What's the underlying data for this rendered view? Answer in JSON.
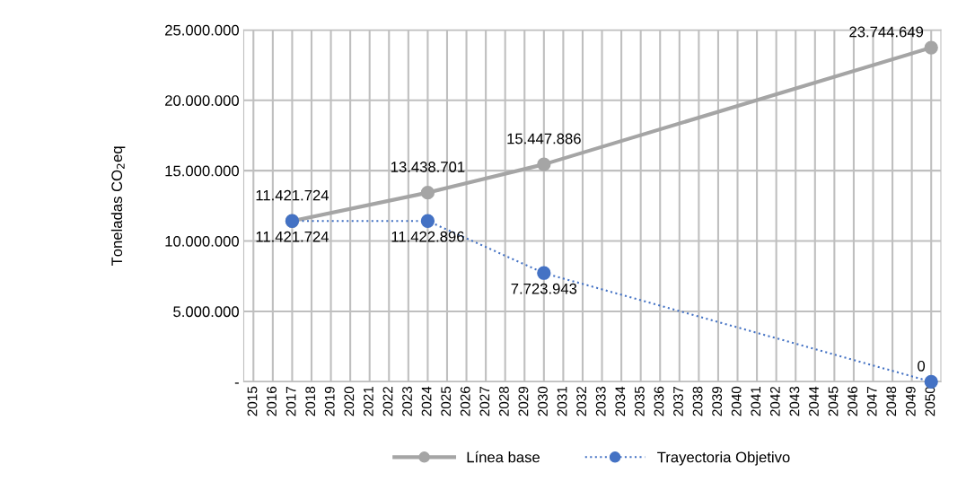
{
  "chart_data": {
    "type": "line",
    "ylabel": "Toneladas CO$_{2}$eq",
    "categories": [
      "2015",
      "2016",
      "2017",
      "2018",
      "2019",
      "2020",
      "2021",
      "2022",
      "2023",
      "2024",
      "2025",
      "2026",
      "2027",
      "2028",
      "2029",
      "2030",
      "2031",
      "2032",
      "2033",
      "2034",
      "2035",
      "2036",
      "2037",
      "2038",
      "2039",
      "2040",
      "2041",
      "2042",
      "2043",
      "2044",
      "2045",
      "2046",
      "2047",
      "2048",
      "2049",
      "2050"
    ],
    "series": [
      {
        "name": "Línea base",
        "color": "#a5a5a5",
        "line_style": "solid",
        "values": [
          null,
          null,
          11421724,
          null,
          null,
          null,
          null,
          null,
          null,
          13438701,
          null,
          null,
          null,
          null,
          null,
          15447886,
          null,
          null,
          null,
          null,
          null,
          null,
          null,
          null,
          null,
          null,
          null,
          null,
          null,
          null,
          null,
          null,
          null,
          null,
          null,
          23744649
        ],
        "value_labels": [
          null,
          null,
          "11.421.724",
          null,
          null,
          null,
          null,
          null,
          null,
          "13.438.701",
          null,
          null,
          null,
          null,
          null,
          "15.447.886",
          null,
          null,
          null,
          null,
          null,
          null,
          null,
          null,
          null,
          null,
          null,
          null,
          null,
          null,
          null,
          null,
          null,
          null,
          null,
          "23.744.649"
        ]
      },
      {
        "name": "Trayectoria Objetivo",
        "color": "#4472c4",
        "line_style": "dotted",
        "values": [
          null,
          null,
          11421724,
          null,
          null,
          null,
          null,
          null,
          null,
          11422896,
          null,
          null,
          null,
          null,
          null,
          7723943,
          null,
          null,
          null,
          null,
          null,
          null,
          null,
          null,
          null,
          null,
          null,
          null,
          null,
          null,
          null,
          null,
          null,
          null,
          null,
          0
        ],
        "value_labels": [
          null,
          null,
          "11.421.724",
          null,
          null,
          null,
          null,
          null,
          null,
          "11.422.896",
          null,
          null,
          null,
          null,
          null,
          "7.723.943",
          null,
          null,
          null,
          null,
          null,
          null,
          null,
          null,
          null,
          null,
          null,
          null,
          null,
          null,
          null,
          null,
          null,
          null,
          null,
          "0"
        ]
      }
    ],
    "ylim": [
      0,
      25000000
    ],
    "yticks": [
      {
        "value": 0,
        "label": "-"
      },
      {
        "value": 5000000,
        "label": "5.000.000"
      },
      {
        "value": 10000000,
        "label": "10.000.000"
      },
      {
        "value": 15000000,
        "label": "15.000.000"
      },
      {
        "value": 20000000,
        "label": "20.000.000"
      },
      {
        "value": 25000000,
        "label": "25.000.000"
      }
    ],
    "grid": true,
    "legend": "bottom",
    "marker": "circle"
  }
}
